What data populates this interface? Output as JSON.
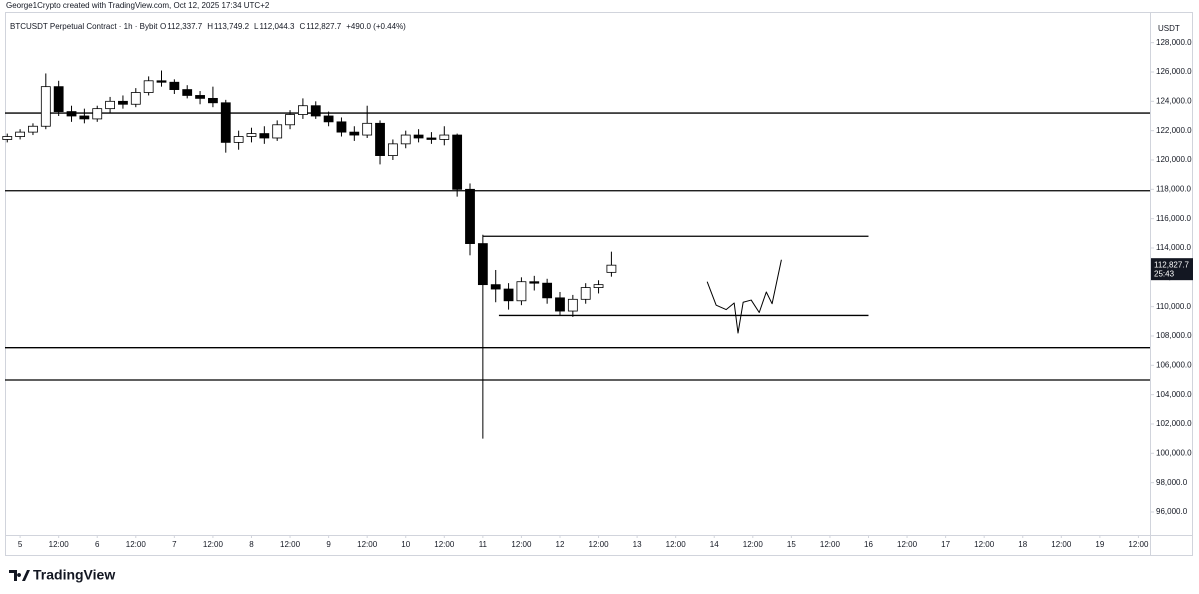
{
  "header": {
    "credit": "George1Crypto created with TradingView.com, Oct 12, 2025 17:34 UTC+2"
  },
  "chart_data": {
    "type": "candlestick",
    "title": "BTCUSDT Perpetual Contract · 1h · Bybit",
    "ohlc_legend": {
      "labels": [
        "O",
        "H",
        "L",
        "C"
      ],
      "values": [
        112337.7,
        113749.2,
        112044.3,
        112827.7
      ],
      "value_labels": [
        "112,337.7",
        "113,749.2",
        "112,044.3",
        "112,827.7"
      ],
      "change": "+490.0 (+0.44%)"
    },
    "y_unit": "USDT",
    "x": [
      -4,
      0,
      4,
      8,
      12,
      16,
      20,
      24,
      28,
      32,
      36,
      40,
      44,
      48,
      52,
      56,
      60,
      64,
      68,
      72,
      76,
      80,
      84,
      88,
      92,
      96,
      100,
      104,
      108,
      112,
      116,
      120,
      124,
      128,
      132,
      136,
      140,
      144,
      148,
      152,
      156,
      160,
      164,
      168,
      172,
      176,
      180,
      184
    ],
    "open": [
      121400,
      121600,
      121900,
      122300,
      125000,
      123300,
      123000,
      122800,
      123500,
      124000,
      123800,
      124600,
      125400,
      125300,
      124800,
      124400,
      124200,
      123900,
      121200,
      121600,
      121800,
      121500,
      122400,
      123100,
      123700,
      123000,
      122600,
      121900,
      121700,
      122500,
      120300,
      121100,
      121700,
      121500,
      121400,
      121700,
      118000,
      114300,
      111500,
      111200,
      110400,
      111700,
      111600,
      110600,
      109700,
      110500,
      111300,
      112337.7
    ],
    "high": [
      121800,
      122100,
      122500,
      125900,
      125400,
      123700,
      123500,
      123700,
      124300,
      124400,
      124900,
      125700,
      126100,
      125500,
      125100,
      124700,
      125000,
      124100,
      122000,
      122200,
      122300,
      122700,
      123400,
      124200,
      124000,
      123300,
      122900,
      122300,
      123700,
      122700,
      121400,
      122000,
      122100,
      121900,
      122300,
      121800,
      118400,
      114900,
      112500,
      111600,
      112000,
      112100,
      111900,
      111000,
      110800,
      111600,
      111800,
      113749.2
    ],
    "low": [
      121200,
      121400,
      121700,
      122100,
      123000,
      122600,
      122500,
      122600,
      123200,
      123500,
      123600,
      124400,
      125000,
      124500,
      124200,
      123800,
      123600,
      120500,
      120700,
      121200,
      121100,
      121300,
      122100,
      122800,
      122800,
      122300,
      121600,
      121300,
      121500,
      119700,
      120000,
      120800,
      121200,
      121100,
      121000,
      117500,
      113500,
      101000,
      110300,
      109800,
      110100,
      111100,
      110200,
      109400,
      109300,
      110200,
      110900,
      112044.3
    ],
    "close": [
      121600,
      121900,
      122300,
      125000,
      123300,
      123000,
      122800,
      123500,
      124000,
      123800,
      124600,
      125400,
      125300,
      124800,
      124400,
      124200,
      123900,
      121200,
      121600,
      121800,
      121500,
      122400,
      123100,
      123700,
      123000,
      122600,
      121900,
      121700,
      122500,
      120300,
      121100,
      121700,
      121500,
      121400,
      121700,
      118000,
      114300,
      111500,
      111200,
      110400,
      111700,
      111600,
      110600,
      109700,
      110500,
      111300,
      111500,
      112827.7
    ],
    "up_color": "#ffffff",
    "down_color": "#000000",
    "wick_color": "#000000",
    "last_price": {
      "value": 112827.7,
      "label": "112,827.7",
      "countdown": "25:43"
    },
    "levels": [
      123200,
      117900,
      107200,
      105000
    ],
    "ranges": [
      {
        "value": 114800,
        "x": [
          144,
          264
        ]
      },
      {
        "value": 109400,
        "x": [
          149,
          264
        ]
      }
    ],
    "projection": {
      "x": [
        213.8,
        216.6,
        219.7,
        222.2,
        223.4,
        225,
        227.5,
        230,
        232.2,
        234,
        236.9
      ],
      "values": [
        111700,
        110100,
        109800,
        110250,
        108200,
        110300,
        110450,
        109600,
        111000,
        110200,
        113200
      ]
    },
    "xlim": [
      -4.7,
      351.6
    ],
    "ylim": [
      94430,
      130090
    ],
    "xticks": [
      {
        "value": 0,
        "label": "5"
      },
      {
        "value": 12,
        "label": "12:00"
      },
      {
        "value": 24,
        "label": "6"
      },
      {
        "value": 36,
        "label": "12:00"
      },
      {
        "value": 48,
        "label": "7"
      },
      {
        "value": 60,
        "label": "12:00"
      },
      {
        "value": 72,
        "label": "8"
      },
      {
        "value": 84,
        "label": "12:00"
      },
      {
        "value": 96,
        "label": "9"
      },
      {
        "value": 108,
        "label": "12:00"
      },
      {
        "value": 120,
        "label": "10"
      },
      {
        "value": 132,
        "label": "12:00"
      },
      {
        "value": 144,
        "label": "11"
      },
      {
        "value": 156,
        "label": "12:00"
      },
      {
        "value": 168,
        "label": "12"
      },
      {
        "value": 180,
        "label": "12:00"
      },
      {
        "value": 192,
        "label": "13"
      },
      {
        "value": 204,
        "label": "12:00"
      },
      {
        "value": 216,
        "label": "14"
      },
      {
        "value": 228,
        "label": "12:00"
      },
      {
        "value": 240,
        "label": "15"
      },
      {
        "value": 252,
        "label": "12:00"
      },
      {
        "value": 264,
        "label": "16"
      },
      {
        "value": 276,
        "label": "12:00"
      },
      {
        "value": 288,
        "label": "17"
      },
      {
        "value": 300,
        "label": "12:00"
      },
      {
        "value": 312,
        "label": "18"
      },
      {
        "value": 324,
        "label": "12:00"
      },
      {
        "value": 336,
        "label": "19"
      },
      {
        "value": 348,
        "label": "12:00"
      }
    ],
    "yticks": [
      {
        "value": 96000,
        "label": "96,000.0"
      },
      {
        "value": 98000,
        "label": "98,000.0"
      },
      {
        "value": 100000,
        "label": "100,000.0"
      },
      {
        "value": 102000,
        "label": "102,000.0"
      },
      {
        "value": 104000,
        "label": "104,000.0"
      },
      {
        "value": 106000,
        "label": "106,000.0"
      },
      {
        "value": 108000,
        "label": "108,000.0"
      },
      {
        "value": 110000,
        "label": "110,000.0"
      },
      {
        "value": 112000,
        "label": "112,000.0"
      },
      {
        "value": 114000,
        "label": "114,000.0"
      },
      {
        "value": 116000,
        "label": "116,000.0"
      },
      {
        "value": 118000,
        "label": "118,000.0"
      },
      {
        "value": 120000,
        "label": "120,000.0"
      },
      {
        "value": 122000,
        "label": "122,000.0"
      },
      {
        "value": 124000,
        "label": "124,000.0"
      },
      {
        "value": 126000,
        "label": "126,000.0"
      },
      {
        "value": 128000,
        "label": "128,000.0"
      }
    ]
  },
  "footer": {
    "brand": "TradingView"
  }
}
